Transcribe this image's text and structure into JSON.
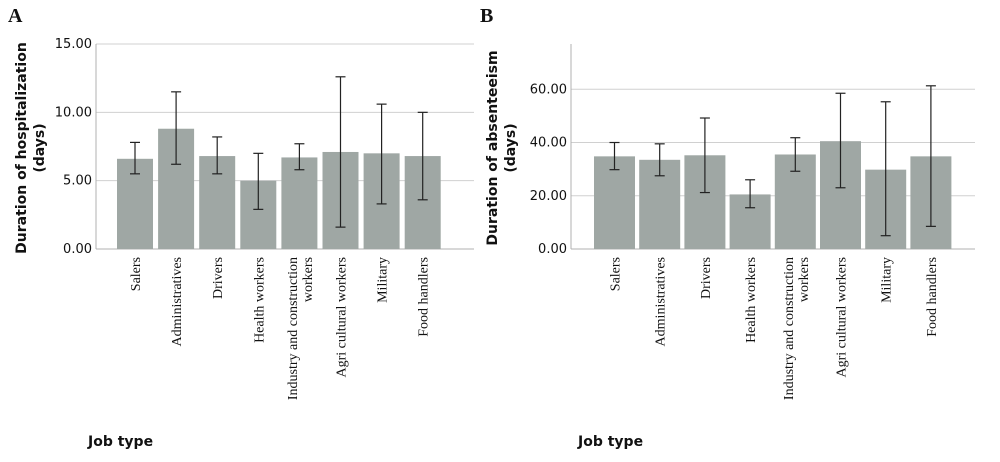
{
  "chart_data": [
    {
      "type": "bar",
      "panel": "A",
      "ylabel_lines": [
        "Duration of hospitalization",
        "(days)"
      ],
      "xlabel": "Job type",
      "categories": [
        "Salers",
        "Administratives",
        "Drivers",
        "Health workers",
        [
          "Industry and construction",
          "workers"
        ],
        "Agri cultural workers",
        "Military",
        "Food handlers"
      ],
      "values": [
        6.6,
        8.8,
        6.8,
        5.0,
        6.7,
        7.1,
        7.0,
        6.8
      ],
      "error_low": [
        5.5,
        6.2,
        5.5,
        2.9,
        5.8,
        1.6,
        3.3,
        3.6
      ],
      "error_high": [
        7.8,
        11.5,
        8.2,
        7.0,
        7.7,
        12.6,
        10.6,
        10.0
      ],
      "ylim": [
        0,
        15
      ],
      "yticks": [
        "0.00",
        "5.00",
        "10.00",
        "15.00"
      ],
      "ytick_values": [
        0,
        5,
        10,
        15
      ],
      "grid": true,
      "bar_color": "#9fa7a4"
    },
    {
      "type": "bar",
      "panel": "B",
      "ylabel_lines": [
        "Duration of absenteeism",
        "(days)"
      ],
      "xlabel": "Job type",
      "categories": [
        "Salers",
        "Administratives",
        "Drivers",
        "Health workers",
        [
          "Industry and construction",
          "workers"
        ],
        "Agri cultural workers",
        "Military",
        "Food handlers"
      ],
      "values": [
        34.8,
        33.5,
        35.2,
        20.5,
        35.5,
        40.5,
        29.8,
        34.8
      ],
      "error_low": [
        29.8,
        27.5,
        21.2,
        15.5,
        29.2,
        23.0,
        5.0,
        8.5
      ],
      "error_high": [
        40.0,
        39.5,
        49.2,
        26.0,
        41.8,
        58.5,
        55.3,
        61.3
      ],
      "ylim": [
        0,
        77
      ],
      "yticks": [
        "0.00",
        "20.00",
        "40.00",
        "60.00"
      ],
      "ytick_values": [
        0,
        20,
        40,
        60
      ],
      "grid": true,
      "bar_color": "#9fa7a4"
    }
  ]
}
